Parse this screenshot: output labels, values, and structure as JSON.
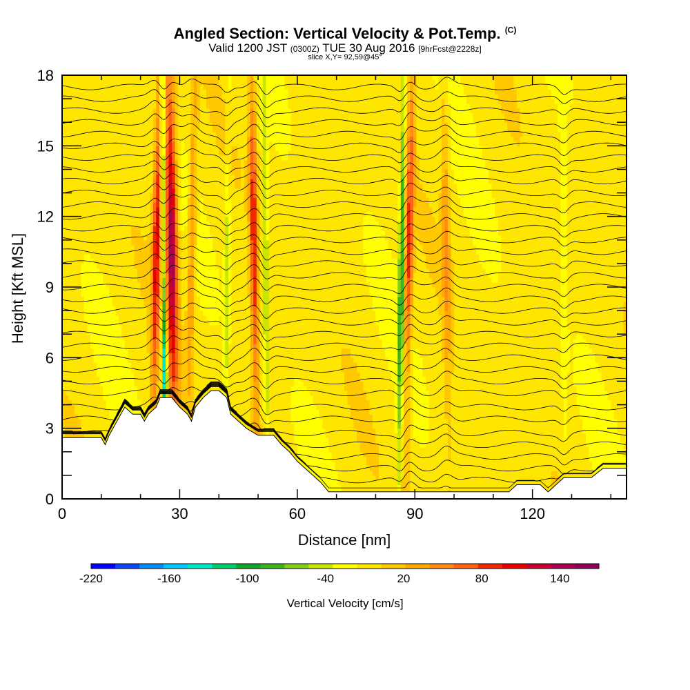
{
  "header": {
    "title": "Angled Section: Vertical Velocity & Pot.Temp.",
    "copyright": "(C)",
    "valid_prefix": "Valid 1200 JST",
    "valid_utc": "(0300Z)",
    "valid_date": "TUE 30 Aug 2016",
    "forecast": "[9hrFcst@2228z]",
    "slice": "slice X,Y= 92,59@45°"
  },
  "chart_data": {
    "type": "heatmap",
    "title": "Angled Section: Vertical Velocity & Pot.Temp.",
    "xlabel": "Distance [nm]",
    "ylabel": "Height [Kft MSL]",
    "xlim": [
      0,
      144
    ],
    "ylim": [
      0,
      18
    ],
    "x_ticks": [
      0,
      30,
      60,
      90,
      120
    ],
    "y_ticks": [
      0,
      3,
      6,
      9,
      12,
      15,
      18
    ],
    "colorbar": {
      "label": "Vertical Velocity [cm/s]",
      "tick_values": [
        -220,
        -160,
        -100,
        -40,
        20,
        80,
        140
      ],
      "range": [
        -220,
        170
      ],
      "step": 20,
      "colors": [
        "#0000ff",
        "#0a46f2",
        "#0a8cf2",
        "#00c8ff",
        "#00e6c8",
        "#00cc6e",
        "#14a528",
        "#3cb41e",
        "#82cd1e",
        "#c8e600",
        "#ffff00",
        "#ffe600",
        "#ffc800",
        "#ffaa00",
        "#ff8c14",
        "#ff6414",
        "#f02800",
        "#e60000",
        "#c80032",
        "#aa0050",
        "#8c005a",
        "#64006e"
      ]
    },
    "terrain_kft": {
      "x": [
        0,
        10,
        11,
        12,
        14,
        16,
        18,
        20,
        21,
        22,
        24,
        25,
        26,
        27,
        28,
        30,
        32,
        33,
        34,
        36,
        38,
        40,
        42,
        43,
        45,
        47,
        50,
        52,
        54,
        56,
        58,
        60,
        62,
        64,
        66,
        68,
        70,
        72,
        76,
        80,
        90,
        100,
        104,
        114,
        116,
        120,
        122,
        124,
        126,
        128,
        132,
        135,
        138,
        144
      ],
      "height": [
        2.6,
        2.6,
        2.3,
        2.7,
        3.3,
        3.9,
        3.6,
        3.6,
        3.3,
        3.6,
        3.9,
        4.3,
        4.3,
        4.3,
        4.3,
        3.9,
        3.6,
        3.3,
        3.9,
        4.3,
        4.6,
        4.6,
        4.3,
        3.6,
        3.3,
        3.0,
        2.7,
        2.7,
        2.7,
        2.3,
        2.0,
        1.6,
        1.3,
        1.0,
        0.7,
        0.3,
        0.3,
        0.3,
        0.3,
        0.3,
        0.3,
        0.3,
        0.3,
        0.3,
        0.6,
        0.6,
        0.6,
        0.3,
        0.6,
        0.9,
        0.9,
        0.9,
        1.3,
        1.3
      ]
    },
    "updraft_bands": [
      {
        "x_nm": 24.0,
        "w_max_cm_s": 120
      },
      {
        "x_nm": 28.0,
        "w_max_cm_s": 170
      },
      {
        "x_nm": 33.0,
        "w_max_cm_s": 60
      },
      {
        "x_nm": 49.0,
        "w_max_cm_s": 110
      },
      {
        "x_nm": 88.5,
        "w_max_cm_s": 100
      },
      {
        "x_nm": 98.0,
        "w_max_cm_s": 50
      }
    ],
    "downdraft_bands": [
      {
        "x_nm": 26.0,
        "w_min_cm_s": -170
      },
      {
        "x_nm": 42.0,
        "w_min_cm_s": -40
      },
      {
        "x_nm": 52.0,
        "w_min_cm_s": -60
      },
      {
        "x_nm": 86.5,
        "w_min_cm_s": -100
      },
      {
        "x_nm": 128.0,
        "w_min_cm_s": -30
      }
    ],
    "theta_isolines_kft": [
      0.3,
      0.8,
      1.3,
      1.8,
      2.3,
      2.8,
      3.4,
      3.9,
      4.5,
      5.0,
      5.5,
      6.0,
      6.5,
      7.0,
      7.5,
      8.0,
      8.5,
      9.0,
      9.5,
      10.0,
      10.5,
      11.0,
      11.5,
      12.0,
      12.5,
      13.0,
      13.5,
      14.0,
      14.5,
      15.0,
      15.5,
      16.0,
      16.5,
      17.0,
      17.5
    ]
  }
}
